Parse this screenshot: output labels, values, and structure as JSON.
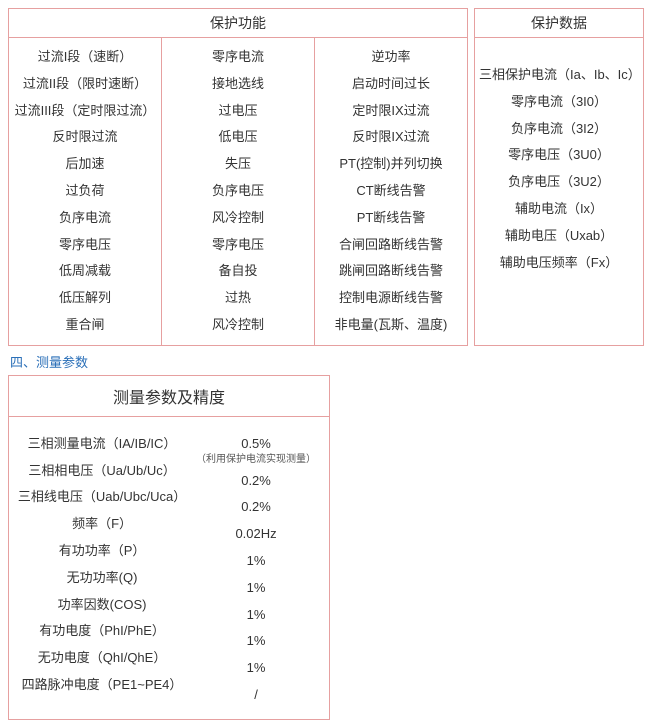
{
  "colors": {
    "border": "#e6a0a0",
    "text": "#333333",
    "section_title": "#2a6fb8",
    "background": "#ffffff"
  },
  "top": {
    "protect_func": {
      "header": "保护功能",
      "col1": [
        "过流I段（速断）",
        "过流II段（限时速断）",
        "过流III段（定时限过流）",
        "反时限过流",
        "后加速",
        "过负荷",
        "负序电流",
        "零序电压",
        "低周减载",
        "低压解列",
        "重合闸"
      ],
      "col2": [
        "零序电流",
        "接地选线",
        "过电压",
        "低电压",
        "失压",
        "负序电压",
        "风冷控制",
        "零序电压",
        "备自投",
        "过热",
        "风冷控制"
      ],
      "col3": [
        "逆功率",
        "启动时间过长",
        "定时限IX过流",
        "反时限IX过流",
        "PT(控制)并列切换",
        "CT断线告警",
        "PT断线告警",
        "合闸回路断线告警",
        "跳闸回路断线告警",
        "控制电源断线告警",
        "非电量(瓦斯、温度)"
      ]
    },
    "protect_data": {
      "header": "保护数据",
      "items": [
        "三相保护电流（Ia、Ib、Ic）",
        "零序电流（3I0）",
        "负序电流（3I2）",
        "零序电压（3U0）",
        "负序电压（3U2）",
        "辅助电流（Ix）",
        "辅助电压（Uxab）",
        "辅助电压频率（Fx）"
      ]
    }
  },
  "section_title": "四、测量参数",
  "measure": {
    "header": "测量参数及精度",
    "row0": {
      "label": "三相测量电流（IA/IB/IC）",
      "value": "0.5%",
      "note": "（利用保护电流实现测量）"
    },
    "rows": [
      {
        "label": "三相相电压（Ua/Ub/Uc）",
        "value": "0.2%"
      },
      {
        "label": "三相线电压（Uab/Ubc/Uca）",
        "value": "0.2%"
      },
      {
        "label": "频率（F）",
        "value": "0.02Hz"
      },
      {
        "label": "有功功率（P）",
        "value": "1%"
      },
      {
        "label": "无功功率(Q)",
        "value": "1%"
      },
      {
        "label": "功率因数(COS)",
        "value": "1%"
      },
      {
        "label": "有功电度（PhI/PhE）",
        "value": "1%"
      },
      {
        "label": "无功电度（QhI/QhE）",
        "value": "1%"
      },
      {
        "label": "四路脉冲电度（PE1~PE4）",
        "value": "/"
      }
    ]
  }
}
